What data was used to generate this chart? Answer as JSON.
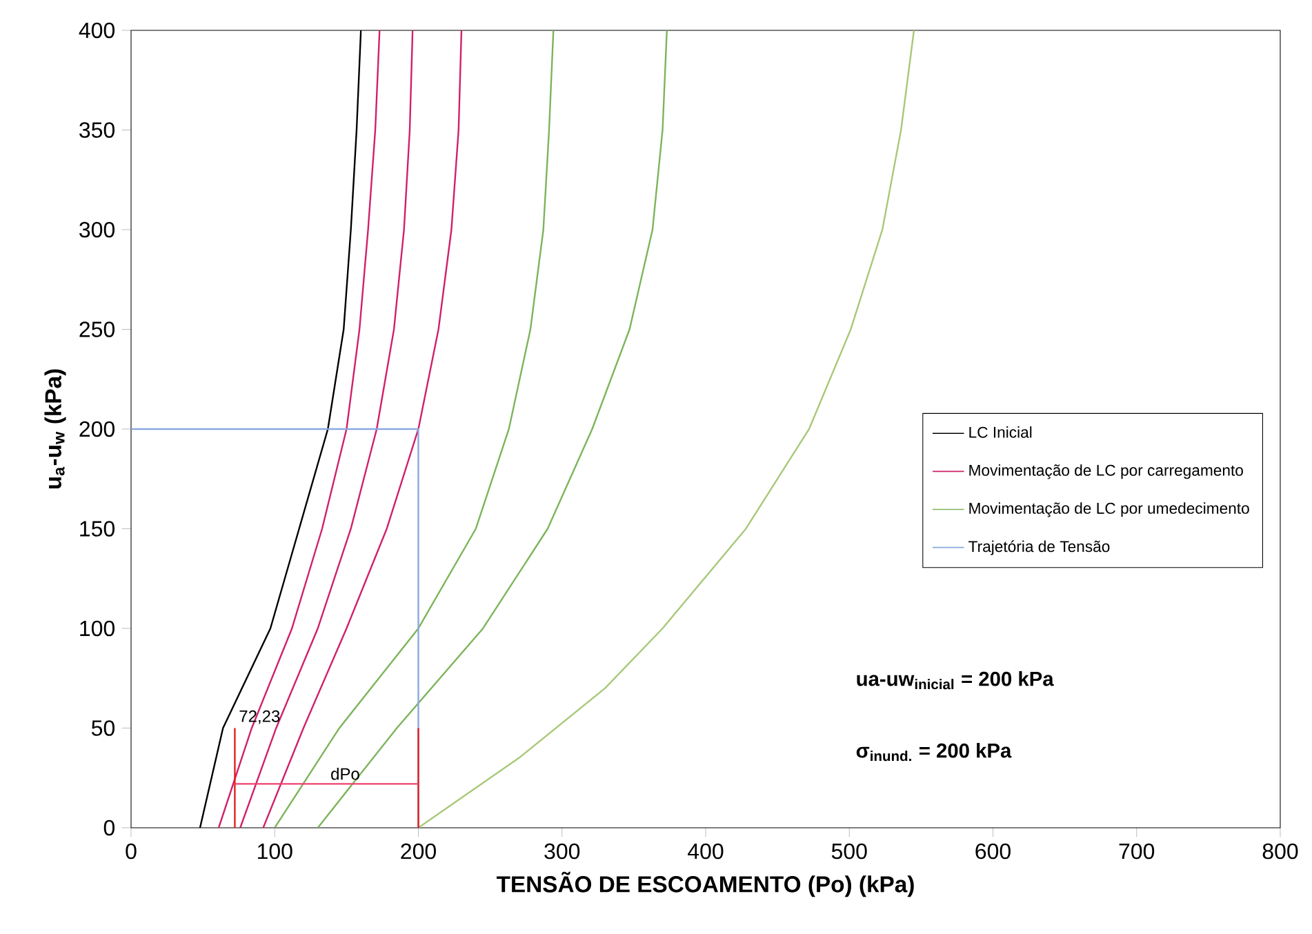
{
  "chart_data": {
    "type": "line",
    "xlabel": "TENSÃO DE ESCOAMENTO (Po) (kPa)",
    "ylabel": "u$_{a}$-u$_{w}$ (kPa)",
    "xlim": [
      0,
      800
    ],
    "ylim": [
      0,
      400
    ],
    "xticks": [
      0,
      100,
      200,
      300,
      400,
      500,
      600,
      700,
      800
    ],
    "yticks": [
      0,
      50,
      100,
      150,
      200,
      250,
      300,
      350,
      400
    ],
    "legend": "right",
    "series": [
      {
        "name": "LC Inicial",
        "color": "#000000",
        "x": [
          48,
          64,
          97,
          117,
          137,
          148,
          153,
          157,
          160
        ],
        "values": [
          0,
          50,
          100,
          150,
          200,
          250,
          300,
          350,
          400
        ]
      },
      {
        "name": "Movimentação de LC por carregamento",
        "color": "#d0206a",
        "x": [
          61,
          84,
          112,
          133,
          150,
          159,
          165,
          170,
          173
        ],
        "values": [
          0,
          50,
          100,
          150,
          200,
          250,
          300,
          350,
          400
        ]
      },
      {
        "color": "#d0206a",
        "x": [
          76,
          101,
          130,
          153,
          171,
          183,
          190,
          194,
          196
        ],
        "values": [
          0,
          50,
          100,
          150,
          200,
          250,
          300,
          350,
          400
        ]
      },
      {
        "color": "#d0206a",
        "x": [
          92,
          120,
          150,
          178,
          200,
          214,
          223,
          228,
          230
        ],
        "values": [
          0,
          50,
          100,
          150,
          200,
          250,
          300,
          350,
          400
        ]
      },
      {
        "name": "Movimentação de LC por umedecimento",
        "color": "#7cb45a",
        "x": [
          100,
          145,
          200,
          240,
          263,
          278,
          287,
          291,
          294
        ],
        "values": [
          0,
          50,
          100,
          150,
          200,
          250,
          300,
          350,
          400
        ]
      },
      {
        "color": "#7cb45a",
        "x": [
          130,
          185,
          245,
          290,
          321,
          347,
          363,
          370,
          373
        ],
        "values": [
          0,
          50,
          100,
          150,
          200,
          250,
          300,
          350,
          400
        ]
      },
      {
        "color": "#a8c878",
        "x": [
          200,
          270,
          330,
          370,
          428,
          472,
          501,
          523,
          536,
          545
        ],
        "values": [
          0,
          35,
          70,
          100,
          150,
          200,
          250,
          300,
          350,
          400
        ]
      },
      {
        "name": "Trajetória de Tensão",
        "color": "#8aa8e0",
        "x": [
          0,
          200,
          200
        ],
        "values": [
          200,
          200,
          0
        ]
      },
      {
        "color": "#e02020",
        "x": [
          72.23,
          72.23
        ],
        "values": [
          0,
          50
        ]
      },
      {
        "color": "#e02020",
        "x": [
          200,
          200
        ],
        "values": [
          0,
          50
        ]
      },
      {
        "color": "#f04070",
        "x": [
          72.23,
          200
        ],
        "values": [
          22,
          22
        ]
      }
    ],
    "annotations": [
      {
        "text": "72,23",
        "x": 72.23,
        "y": 50
      },
      {
        "text": "dPo",
        "x": 136,
        "y": 22
      },
      "ua-uw$_{inicial}$ = 200 kPa",
      "σ$_{inund.}$ = 200 kPa"
    ]
  }
}
